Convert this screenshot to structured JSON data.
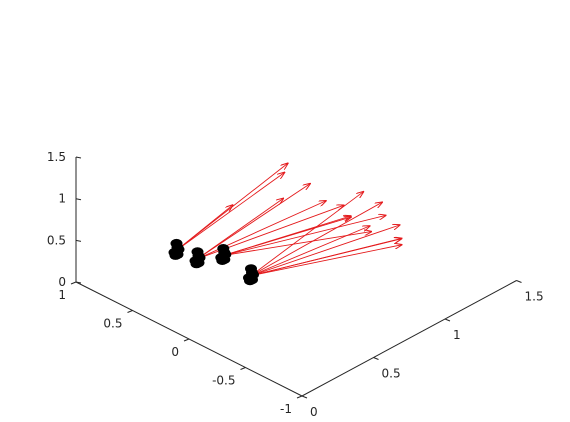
{
  "colors": {
    "axis": "#262626",
    "vector": "#e41a1c",
    "marker": "#000000",
    "background": "#ffffff"
  },
  "chart_data": {
    "type": "quiver3d",
    "title": "",
    "xlabel": "",
    "ylabel": "",
    "zlabel": "",
    "grid": false,
    "xlim": [
      -1,
      1
    ],
    "ylim": [
      0,
      1.5
    ],
    "zlim": [
      0,
      1.5
    ],
    "x_ticks": [
      "1",
      "0.5",
      "0",
      "-0.5",
      "-1"
    ],
    "y_ticks": [
      "0",
      "0.5",
      "1",
      "1.5"
    ],
    "z_ticks": [
      "0",
      "0.5",
      "1",
      "1.5"
    ],
    "marker_clusters": [
      {
        "x": 0.3,
        "y": 0.15,
        "z": 0.72
      },
      {
        "x": 0.14,
        "y": 0.17,
        "z": 0.71
      },
      {
        "x": 0.0,
        "y": 0.24,
        "z": 0.78
      },
      {
        "x": -0.22,
        "y": 0.26,
        "z": 0.67
      }
    ],
    "vectors": [
      {
        "cluster": 0,
        "dx": -0.06,
        "dy": 0.73,
        "dz": 0.41
      },
      {
        "cluster": 0,
        "dx": -0.08,
        "dy": 0.69,
        "dz": 0.35
      },
      {
        "cluster": 0,
        "dx": 0.1,
        "dy": 0.47,
        "dz": 0.04
      },
      {
        "cluster": 1,
        "dx": -0.11,
        "dy": 0.7,
        "dz": 0.33
      },
      {
        "cluster": 1,
        "dx": -0.05,
        "dy": 0.56,
        "dz": 0.24
      },
      {
        "cluster": 1,
        "dx": -0.3,
        "dy": 0.66,
        "dz": 0.29
      },
      {
        "cluster": 1,
        "dx": -0.37,
        "dy": 0.73,
        "dz": 0.22
      },
      {
        "cluster": 2,
        "dx": -0.43,
        "dy": 0.55,
        "dz": 0.26
      },
      {
        "cluster": 2,
        "dx": -0.37,
        "dy": 0.6,
        "dz": 0.16
      },
      {
        "cluster": 2,
        "dx": -0.6,
        "dy": 0.56,
        "dz": 0.18
      },
      {
        "cluster": 2,
        "dx": -0.5,
        "dy": 0.74,
        "dz": 0.14
      },
      {
        "cluster": 3,
        "dx": -0.07,
        "dy": 0.73,
        "dz": 0.38
      },
      {
        "cluster": 3,
        "dx": -0.16,
        "dy": 0.79,
        "dz": 0.26
      },
      {
        "cluster": 3,
        "dx": -0.29,
        "dy": 0.6,
        "dz": 0.24
      },
      {
        "cluster": 3,
        "dx": -0.34,
        "dy": 0.77,
        "dz": 0.13
      },
      {
        "cluster": 3,
        "dx": -0.42,
        "dy": 0.72,
        "dz": 0.07
      },
      {
        "cluster": 3,
        "dx": -0.56,
        "dy": 0.61,
        "dz": 0.19
      },
      {
        "cluster": 3,
        "dx": -0.38,
        "dy": 0.75,
        "dz": 0.01
      }
    ]
  }
}
